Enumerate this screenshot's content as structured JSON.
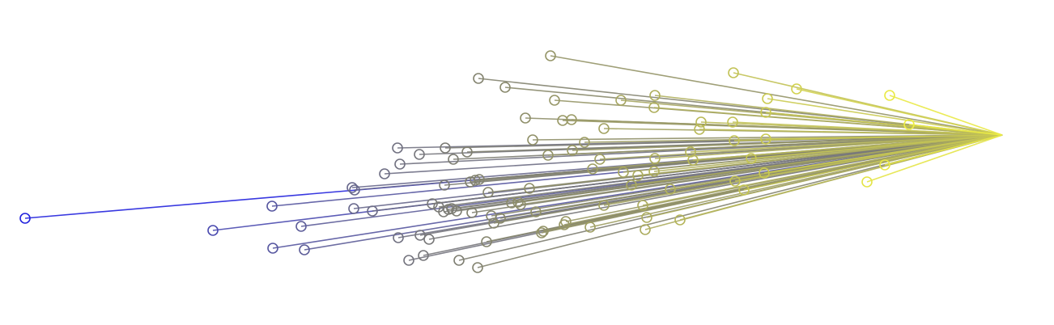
{
  "chart_data": {
    "type": "radial-lines",
    "hub": [
      1238,
      167
    ],
    "color_low": "#2222dd",
    "color_high": "#eeee44",
    "grid": false,
    "legend": "none",
    "points": [
      [
        31,
        270
      ],
      [
        263,
        285
      ],
      [
        336,
        255
      ],
      [
        372,
        280
      ],
      [
        337,
        307
      ],
      [
        376,
        309
      ],
      [
        435,
        232
      ],
      [
        438,
        235
      ],
      [
        437,
        258
      ],
      [
        460,
        261
      ],
      [
        475,
        215
      ],
      [
        491,
        183
      ],
      [
        494,
        203
      ],
      [
        518,
        191
      ],
      [
        550,
        183
      ],
      [
        577,
        188
      ],
      [
        560,
        197
      ],
      [
        492,
        294
      ],
      [
        505,
        322
      ],
      [
        523,
        316
      ],
      [
        519,
        291
      ],
      [
        530,
        296
      ],
      [
        534,
        252
      ],
      [
        542,
        256
      ],
      [
        548,
        262
      ],
      [
        554,
        259
      ],
      [
        558,
        258
      ],
      [
        564,
        261
      ],
      [
        549,
        229
      ],
      [
        581,
        225
      ],
      [
        587,
        223
      ],
      [
        592,
        222
      ],
      [
        603,
        238
      ],
      [
        583,
        263
      ],
      [
        607,
        267
      ],
      [
        610,
        276
      ],
      [
        618,
        270
      ],
      [
        567,
        322
      ],
      [
        590,
        331
      ],
      [
        601,
        299
      ],
      [
        632,
        251
      ],
      [
        640,
        250
      ],
      [
        643,
        253
      ],
      [
        654,
        233
      ],
      [
        662,
        262
      ],
      [
        669,
        288
      ],
      [
        671,
        286
      ],
      [
        677,
        192
      ],
      [
        680,
        69
      ],
      [
        591,
        97
      ],
      [
        624,
        108
      ],
      [
        685,
        124
      ],
      [
        649,
        146
      ],
      [
        695,
        149
      ],
      [
        706,
        148
      ],
      [
        658,
        173
      ],
      [
        707,
        186
      ],
      [
        722,
        176
      ],
      [
        732,
        209
      ],
      [
        741,
        197
      ],
      [
        746,
        159
      ],
      [
        767,
        124
      ],
      [
        809,
        118
      ],
      [
        808,
        133
      ],
      [
        770,
        213
      ],
      [
        788,
        217
      ],
      [
        780,
        229
      ],
      [
        746,
        254
      ],
      [
        729,
        281
      ],
      [
        699,
        274
      ],
      [
        697,
        278
      ],
      [
        797,
        284
      ],
      [
        799,
        269
      ],
      [
        794,
        254
      ],
      [
        809,
        196
      ],
      [
        808,
        212
      ],
      [
        828,
        234
      ],
      [
        840,
        272
      ],
      [
        853,
        188
      ],
      [
        856,
        198
      ],
      [
        864,
        160
      ],
      [
        866,
        151
      ],
      [
        905,
        151
      ],
      [
        906,
        90
      ],
      [
        907,
        174
      ],
      [
        948,
        122
      ],
      [
        946,
        139
      ],
      [
        946,
        172
      ],
      [
        928,
        196
      ],
      [
        944,
        214
      ],
      [
        908,
        224
      ],
      [
        919,
        235
      ],
      [
        984,
        110
      ],
      [
        1099,
        118
      ],
      [
        1123,
        154
      ],
      [
        1093,
        204
      ],
      [
        1071,
        225
      ]
    ]
  }
}
